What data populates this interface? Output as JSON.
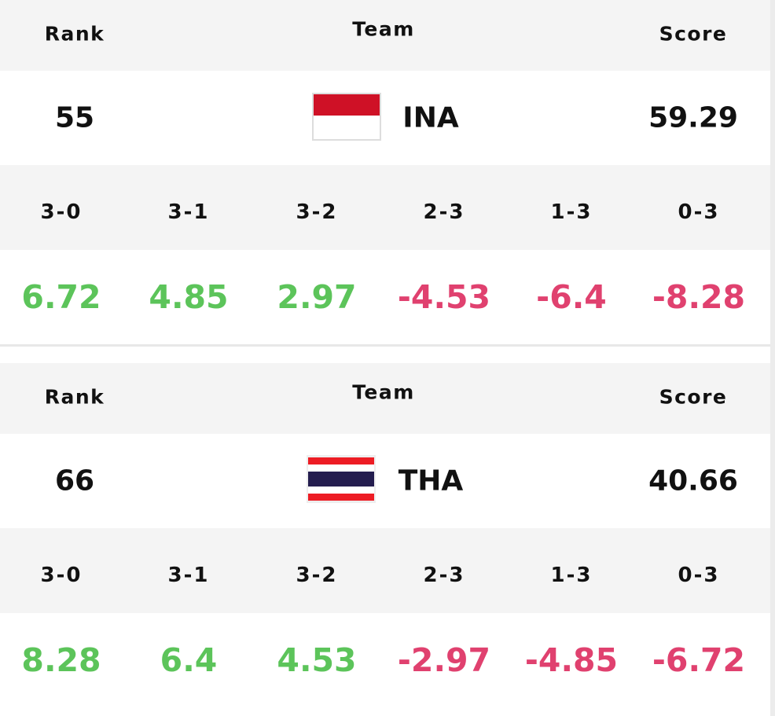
{
  "sections": [
    {
      "headers": {
        "rank": "Rank",
        "team": "Team",
        "score": "Score"
      },
      "rank": 55,
      "team": "INA",
      "score": 59.29,
      "results": [
        {
          "label": "3-0",
          "value": 6.72
        },
        {
          "label": "3-1",
          "value": 4.85
        },
        {
          "label": "3-2",
          "value": 2.97
        },
        {
          "label": "2-3",
          "value": -4.53
        },
        {
          "label": "1-3",
          "value": -6.4
        },
        {
          "label": "0-3",
          "value": -8.28
        }
      ]
    },
    {
      "headers": {
        "rank": "Rank",
        "team": "Team",
        "score": "Score"
      },
      "rank": 66,
      "team": "THA",
      "score": 40.66,
      "results": [
        {
          "label": "3-0",
          "value": 8.28
        },
        {
          "label": "3-1",
          "value": 6.4
        },
        {
          "label": "3-2",
          "value": 4.53
        },
        {
          "label": "2-3",
          "value": -2.97
        },
        {
          "label": "1-3",
          "value": -4.85
        },
        {
          "label": "0-3",
          "value": -6.72
        }
      ]
    }
  ],
  "positive_color": "#5cc45a",
  "negative_color": "#e0416f"
}
